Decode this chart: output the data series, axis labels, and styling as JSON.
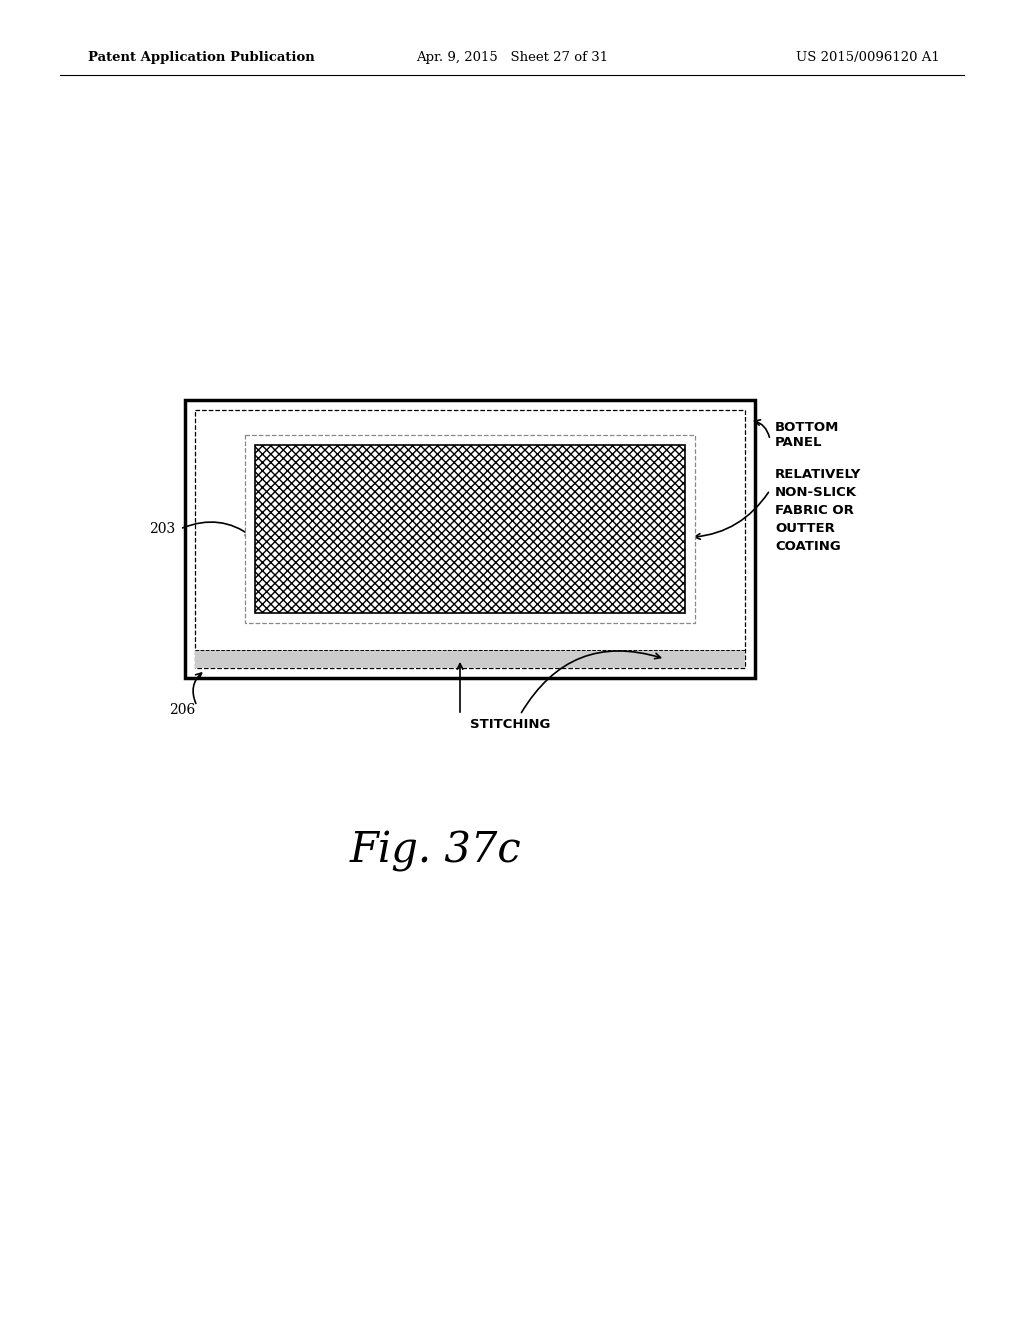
{
  "bg_color": "#ffffff",
  "header_left": "Patent Application Publication",
  "header_center": "Apr. 9, 2015   Sheet 27 of 31",
  "header_right": "US 2015/0096120 A1",
  "fig_label": "Fig. 37c",
  "label_203": "203",
  "label_206": "206",
  "label_bottom_panel": "BOTTOM\nPANEL",
  "label_nonslick": "RELATIVELY\nNON-SLICK\nFABRIC OR\nOUTTER\nCOATING",
  "label_stitching": "STITCHING",
  "text_color": "#000000"
}
